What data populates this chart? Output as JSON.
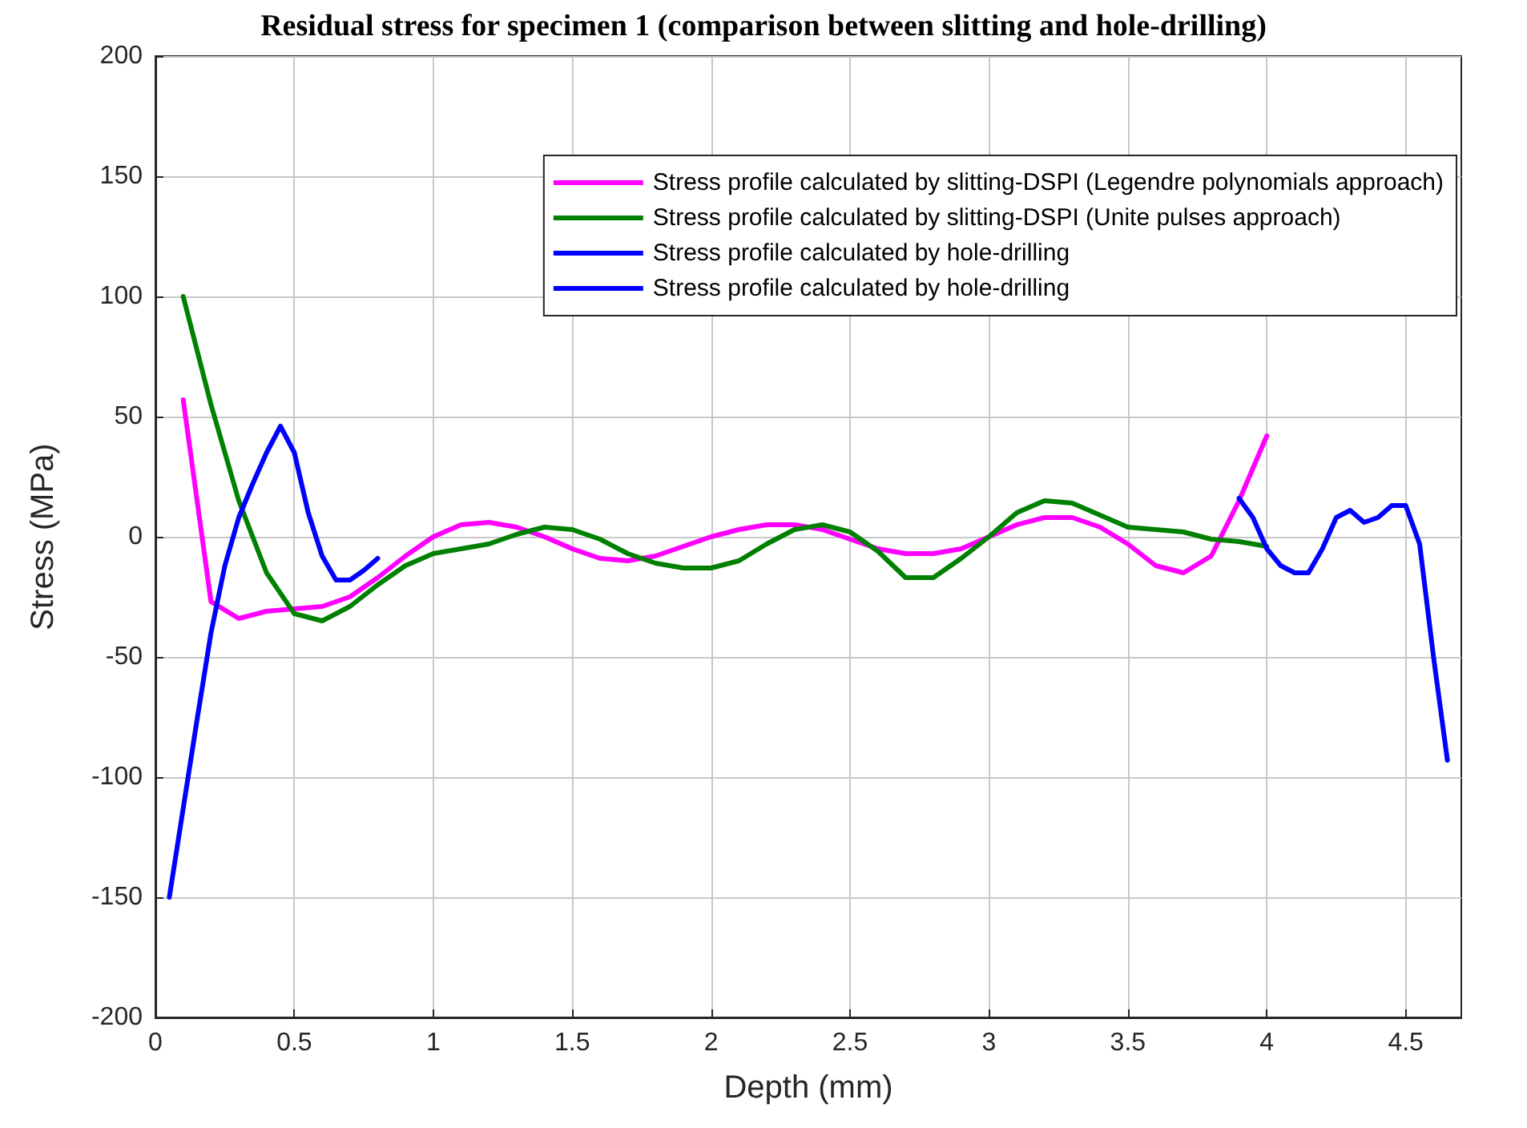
{
  "chart_data": {
    "type": "line",
    "title": "Residual stress for specimen 1 (comparison between slitting and hole-drilling)",
    "xlabel": "Depth (mm)",
    "ylabel": "Stress (MPa)",
    "xlim": [
      0,
      4.7
    ],
    "xticks": [
      0,
      0.5,
      1,
      1.5,
      2,
      2.5,
      3,
      3.5,
      4,
      4.5
    ],
    "ylim": [
      -200,
      200
    ],
    "yticks": [
      -200,
      -150,
      -100,
      -50,
      0,
      50,
      100,
      150,
      200
    ],
    "grid": true,
    "legend": "top right",
    "marker": "none",
    "line_style": "solid",
    "series": [
      {
        "name": "Stress profile calculated by slitting-DSPI (Legendre polynomials approach)",
        "color": "#ff00ff",
        "x": [
          0.1,
          0.2,
          0.3,
          0.4,
          0.5,
          0.6,
          0.7,
          0.8,
          0.9,
          1.0,
          1.1,
          1.2,
          1.3,
          1.4,
          1.5,
          1.6,
          1.7,
          1.8,
          1.9,
          2.0,
          2.1,
          2.2,
          2.3,
          2.4,
          2.5,
          2.6,
          2.7,
          2.8,
          2.9,
          3.0,
          3.1,
          3.2,
          3.3,
          3.4,
          3.5,
          3.6,
          3.7,
          3.8,
          3.9,
          4.0
        ],
        "values": [
          57,
          -27,
          -34,
          -31,
          -30,
          -29,
          -25,
          -17,
          -8,
          0,
          5,
          6,
          4,
          0,
          -5,
          -9,
          -10,
          -8,
          -4,
          0,
          3,
          5,
          5,
          3,
          -1,
          -5,
          -7,
          -7,
          -5,
          0,
          5,
          8,
          8,
          4,
          -3,
          -12,
          -15,
          -8,
          15,
          42
        ]
      },
      {
        "name": "Stress profile calculated by slitting-DSPI (Unite pulses approach)",
        "color": "#008000",
        "x": [
          0.1,
          0.2,
          0.3,
          0.4,
          0.5,
          0.6,
          0.7,
          0.8,
          0.9,
          1.0,
          1.1,
          1.2,
          1.3,
          1.4,
          1.5,
          1.6,
          1.7,
          1.8,
          1.9,
          2.0,
          2.1,
          2.2,
          2.3,
          2.4,
          2.5,
          2.6,
          2.7,
          2.8,
          2.9,
          3.0,
          3.1,
          3.2,
          3.3,
          3.4,
          3.5,
          3.6,
          3.7,
          3.8,
          3.9,
          4.0
        ],
        "values": [
          100,
          55,
          15,
          -15,
          -32,
          -35,
          -29,
          -20,
          -12,
          -7,
          -5,
          -3,
          1,
          4,
          3,
          -1,
          -7,
          -11,
          -13,
          -13,
          -10,
          -3,
          3,
          5,
          2,
          -6,
          -17,
          -17,
          -9,
          0,
          10,
          15,
          14,
          9,
          4,
          3,
          2,
          -1,
          -2,
          -4
        ]
      },
      {
        "name": "Stress profile calculated by hole-drilling",
        "color": "#0000ff",
        "x": [
          0.05,
          0.1,
          0.15,
          0.2,
          0.25,
          0.3,
          0.35,
          0.4,
          0.45,
          0.5,
          0.55,
          0.6,
          0.65,
          0.7,
          0.75,
          0.8
        ],
        "values": [
          -150,
          -113,
          -76,
          -40,
          -12,
          8,
          22,
          35,
          46,
          35,
          10,
          -8,
          -18,
          -18,
          -14,
          -9
        ]
      },
      {
        "name": "Stress profile calculated by hole-drilling",
        "color": "#0000ff",
        "x": [
          3.9,
          3.95,
          4.0,
          4.05,
          4.1,
          4.15,
          4.2,
          4.25,
          4.3,
          4.35,
          4.4,
          4.45,
          4.5,
          4.55,
          4.6,
          4.65
        ],
        "values": [
          16,
          8,
          -5,
          -12,
          -15,
          -15,
          -5,
          8,
          11,
          6,
          8,
          13,
          13,
          -3,
          -50,
          -93
        ]
      }
    ]
  }
}
